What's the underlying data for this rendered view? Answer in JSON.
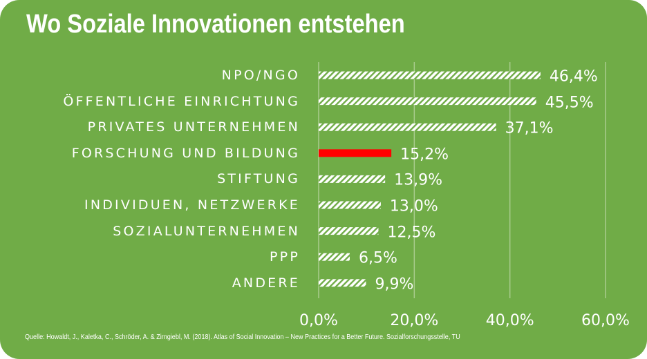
{
  "chart_data": {
    "type": "bar",
    "orientation": "horizontal",
    "title": "Wo Soziale Innovationen entstehen",
    "categories": [
      "NPO/NGO",
      "ÖFFENTLICHE EINRICHTUNG",
      "PRIVATES UNTERNEHMEN",
      "FORSCHUNG UND BILDUNG",
      "STIFTUNG",
      "INDIVIDUEN, NETZWERKE",
      "SOZIALUNTERNEHMEN",
      "PPP",
      "ANDERE"
    ],
    "values": [
      46.4,
      45.5,
      37.1,
      15.2,
      13.9,
      13.0,
      12.5,
      6.5,
      9.9
    ],
    "value_labels": [
      "46,4%",
      "45,5%",
      "37,1%",
      "15,2%",
      "13,9%",
      "13,0%",
      "12,5%",
      "6,5%",
      "9,9%"
    ],
    "highlight_index": 3,
    "xlim": [
      0,
      60
    ],
    "xticks": [
      0,
      20,
      40,
      60
    ],
    "xtick_labels": [
      "0,0%",
      "20,0%",
      "40,0%",
      "60,0%"
    ],
    "xlabel": "",
    "ylabel": "",
    "grid": "vertical",
    "legend": "none",
    "source": "Quelle: Howaldt, J., Kaletka, C., Schröder, A. & Zirngiebl, M. (2018). Atlas of Social Innovation – New Practices for a Better Future. Sozialforschungsstelle, TU"
  },
  "colors": {
    "background": "#70ac47",
    "bar_pattern": "#ffffff",
    "highlight": "#ff0000",
    "gridline": "#a9cc8e",
    "text": "#ffffff"
  }
}
